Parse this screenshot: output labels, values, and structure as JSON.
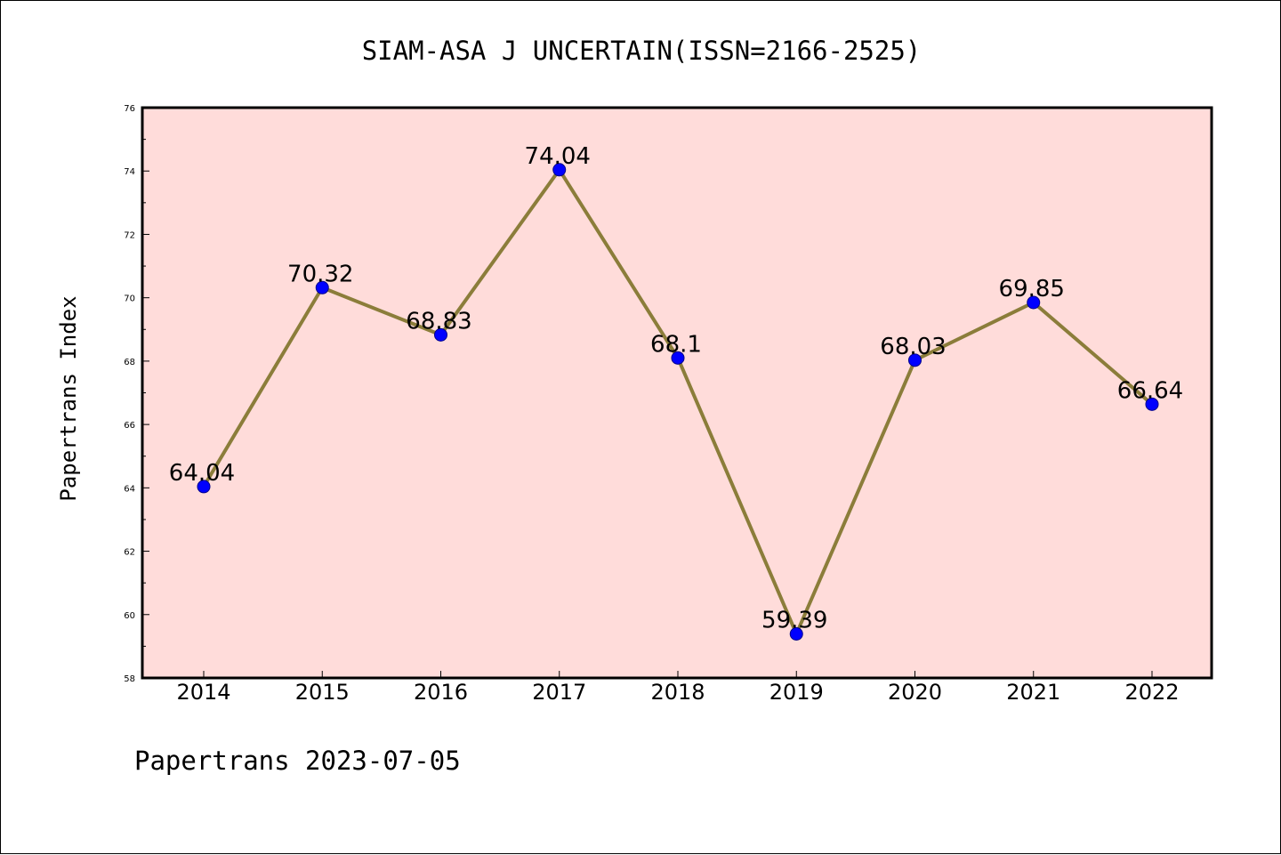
{
  "chart_data": {
    "type": "line",
    "title": "SIAM-ASA J UNCERTAIN(ISSN=2166-2525)",
    "ylabel": "Papertrans Index",
    "xlabel": "",
    "footer": "Papertrans 2023-07-05",
    "categories": [
      "2014",
      "2015",
      "2016",
      "2017",
      "2018",
      "2019",
      "2020",
      "2021",
      "2022"
    ],
    "series": [
      {
        "values": [
          64.04,
          70.32,
          68.83,
          74.04,
          68.1,
          59.39,
          68.03,
          69.85,
          66.64
        ],
        "labels": [
          "64.04",
          "70.32",
          "68.83",
          "74.04",
          "68.1",
          "59.39",
          "68.03",
          "69.85",
          "66.64"
        ]
      }
    ],
    "ylim": [
      58,
      76
    ],
    "yticks": [
      "58",
      "60",
      "62",
      "64",
      "66",
      "68",
      "70",
      "72",
      "74",
      "76"
    ],
    "grid": false,
    "legend": "none",
    "colors": {
      "plot_background": "#FFDCDA",
      "line": "#8B7D3A",
      "marker": "#0000FF",
      "marker_edge": "#00008B"
    }
  }
}
